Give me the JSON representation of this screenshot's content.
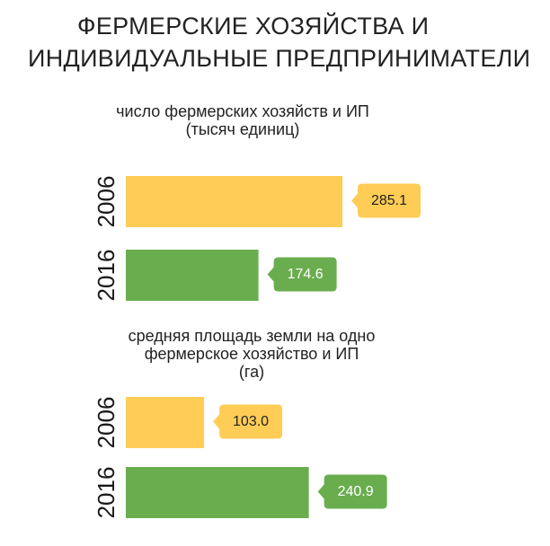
{
  "title_lines": [
    "ФЕРМЕРСКИЕ ХОЗЯЙСТВА И",
    "ИНДИВИДУАЛЬНЫЕ ПРЕДПРИНИМАТЕЛИ"
  ],
  "colors": {
    "y2006": "#FFCC55",
    "y2016": "#6AAD4F",
    "label_text_2006": "#222222",
    "label_text_2016": "#ffffff"
  },
  "chart_data": [
    {
      "type": "bar",
      "title_lines": [
        "число фермерских хозяйств и ИП",
        "(тысяч единиц)"
      ],
      "categories": [
        "2006",
        "2016"
      ],
      "values": [
        285.1,
        174.6
      ],
      "value_labels": [
        "285.1",
        "174.6"
      ]
    },
    {
      "type": "bar",
      "title_lines": [
        "средняя площадь земли на одно",
        "фермерское хозяйство и ИП",
        "(га)"
      ],
      "categories": [
        "2006",
        "2016"
      ],
      "values": [
        103.0,
        240.9
      ],
      "value_labels": [
        "103.0",
        "240.9"
      ]
    }
  ]
}
